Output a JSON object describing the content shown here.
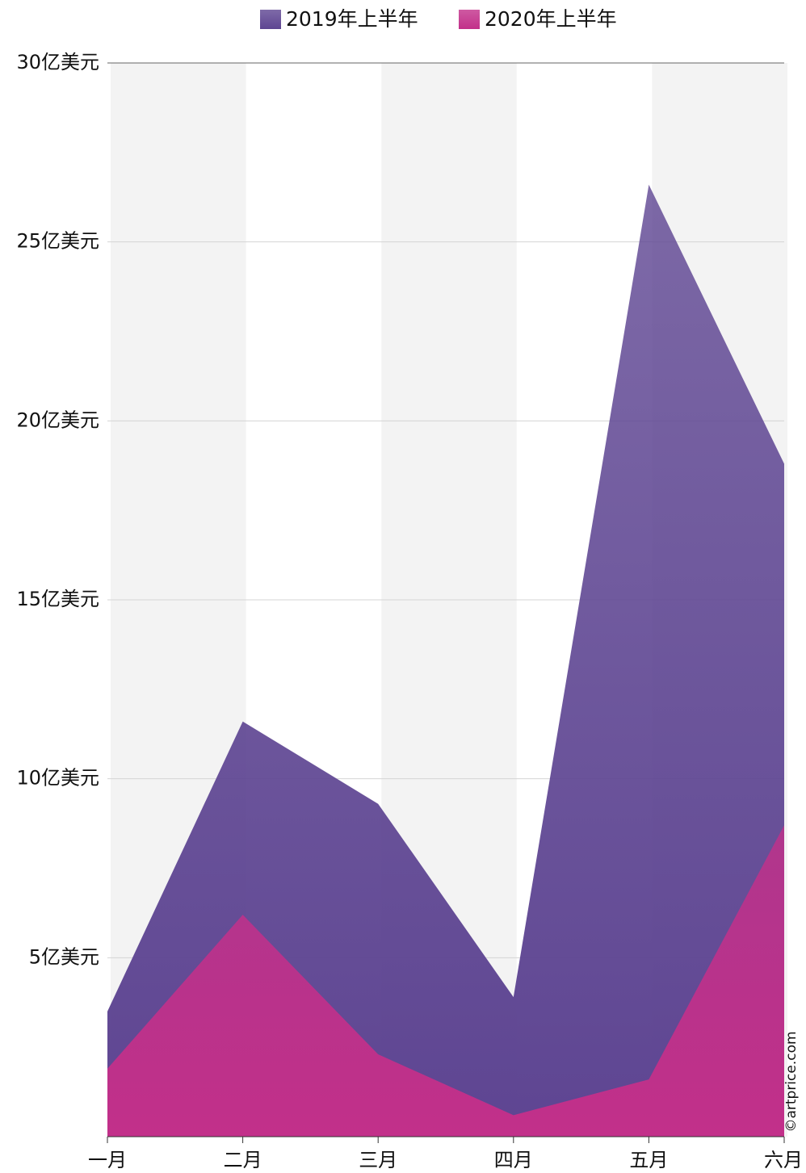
{
  "chart_data": {
    "type": "area",
    "categories": [
      "一月",
      "二月",
      "三月",
      "四月",
      "五月",
      "六月"
    ],
    "series": [
      {
        "name": "2019年上半年",
        "color": "#5e4592",
        "values": [
          3.5,
          11.6,
          9.3,
          3.9,
          26.6,
          18.8
        ]
      },
      {
        "name": "2020年上半年",
        "color": "#c2308a",
        "values": [
          1.9,
          6.2,
          2.3,
          0.6,
          1.6,
          8.7
        ]
      }
    ],
    "ylim": [
      0,
      30
    ],
    "yticks": [
      {
        "value": 5,
        "label": "5亿美元"
      },
      {
        "value": 10,
        "label": "10亿美元"
      },
      {
        "value": 15,
        "label": "15亿美元"
      },
      {
        "value": 20,
        "label": "20亿美元"
      },
      {
        "value": 25,
        "label": "25亿美元"
      },
      {
        "value": 30,
        "label": "30亿美元"
      }
    ],
    "grid": true,
    "legend": "top",
    "source": "©artprice.com"
  }
}
